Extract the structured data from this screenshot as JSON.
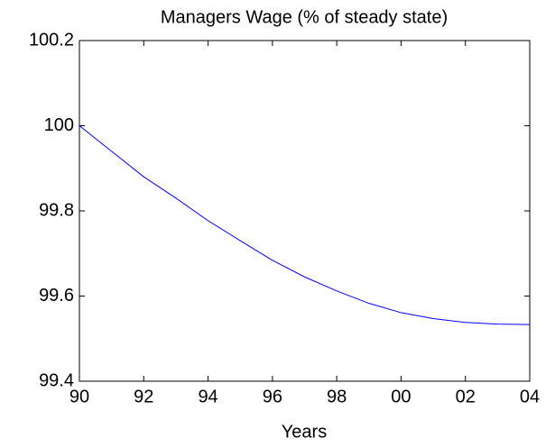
{
  "chart_data": {
    "type": "line",
    "title": "Managers Wage (% of steady state)",
    "x_label": "Years",
    "categories": [
      "90",
      null,
      "92",
      null,
      "94",
      null,
      "96",
      null,
      "98",
      null,
      "00",
      null,
      "02",
      null,
      "04"
    ],
    "series": [
      {
        "color": "#0000ff",
        "values": [
          100.0,
          99.94,
          99.88,
          99.83,
          99.777,
          99.73,
          99.684,
          99.645,
          99.612,
          99.583,
          99.561,
          99.547,
          99.538,
          99.534,
          99.533
        ]
      }
    ],
    "ylim": [
      99.4,
      100.2
    ],
    "yticks": [
      99.4,
      99.6,
      99.8,
      100,
      100.2
    ],
    "grid": false
  }
}
